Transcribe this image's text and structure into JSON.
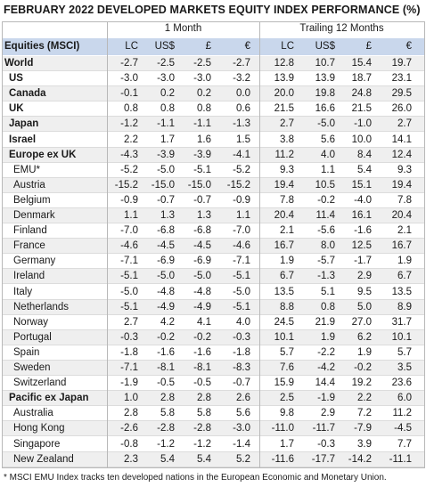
{
  "title": "FEBRUARY 2022 DEVELOPED MARKETS EQUITY INDEX PERFORMANCE (%)",
  "groups": [
    "1 Month",
    "Trailing 12 Months"
  ],
  "header": {
    "label": "Equities (MSCI)",
    "columns": [
      "LC",
      "US$",
      "£",
      "€",
      "LC",
      "US$",
      "£",
      "€"
    ]
  },
  "rows": [
    {
      "label": "World",
      "bold": true,
      "cells": [
        "-2.7",
        "-2.5",
        "-2.5",
        "-2.7",
        "12.8",
        "10.7",
        "15.4",
        "19.7"
      ]
    },
    {
      "label": "US",
      "bold": true,
      "cells": [
        "-3.0",
        "-3.0",
        "-3.0",
        "-3.2",
        "13.9",
        "13.9",
        "18.7",
        "23.1"
      ]
    },
    {
      "label": "Canada",
      "bold": true,
      "cells": [
        "-0.1",
        "0.2",
        "0.2",
        "0.0",
        "20.0",
        "19.8",
        "24.8",
        "29.5"
      ]
    },
    {
      "label": "UK",
      "bold": true,
      "cells": [
        "0.8",
        "0.8",
        "0.8",
        "0.6",
        "21.5",
        "16.6",
        "21.5",
        "26.0"
      ]
    },
    {
      "label": "Japan",
      "bold": true,
      "cells": [
        "-1.2",
        "-1.1",
        "-1.1",
        "-1.3",
        "2.7",
        "-5.0",
        "-1.0",
        "2.7"
      ]
    },
    {
      "label": "Israel",
      "bold": true,
      "cells": [
        "2.2",
        "1.7",
        "1.6",
        "1.5",
        "3.8",
        "5.6",
        "10.0",
        "14.1"
      ]
    },
    {
      "label": "Europe ex UK",
      "bold": true,
      "cells": [
        "-4.3",
        "-3.9",
        "-3.9",
        "-4.1",
        "11.2",
        "4.0",
        "8.4",
        "12.4"
      ]
    },
    {
      "label": "EMU*",
      "bold": false,
      "cells": [
        "-5.2",
        "-5.0",
        "-5.1",
        "-5.2",
        "9.3",
        "1.1",
        "5.4",
        "9.3"
      ]
    },
    {
      "label": "Austria",
      "bold": false,
      "cells": [
        "-15.2",
        "-15.0",
        "-15.0",
        "-15.2",
        "19.4",
        "10.5",
        "15.1",
        "19.4"
      ]
    },
    {
      "label": "Belgium",
      "bold": false,
      "cells": [
        "-0.9",
        "-0.7",
        "-0.7",
        "-0.9",
        "7.8",
        "-0.2",
        "-4.0",
        "7.8"
      ]
    },
    {
      "label": "Denmark",
      "bold": false,
      "cells": [
        "1.1",
        "1.3",
        "1.3",
        "1.1",
        "20.4",
        "11.4",
        "16.1",
        "20.4"
      ]
    },
    {
      "label": "Finland",
      "bold": false,
      "cells": [
        "-7.0",
        "-6.8",
        "-6.8",
        "-7.0",
        "2.1",
        "-5.6",
        "-1.6",
        "2.1"
      ]
    },
    {
      "label": "France",
      "bold": false,
      "cells": [
        "-4.6",
        "-4.5",
        "-4.5",
        "-4.6",
        "16.7",
        "8.0",
        "12.5",
        "16.7"
      ]
    },
    {
      "label": "Germany",
      "bold": false,
      "cells": [
        "-7.1",
        "-6.9",
        "-6.9",
        "-7.1",
        "1.9",
        "-5.7",
        "-1.7",
        "1.9"
      ]
    },
    {
      "label": "Ireland",
      "bold": false,
      "cells": [
        "-5.1",
        "-5.0",
        "-5.0",
        "-5.1",
        "6.7",
        "-1.3",
        "2.9",
        "6.7"
      ]
    },
    {
      "label": "Italy",
      "bold": false,
      "cells": [
        "-5.0",
        "-4.8",
        "-4.8",
        "-5.0",
        "13.5",
        "5.1",
        "9.5",
        "13.5"
      ]
    },
    {
      "label": "Netherlands",
      "bold": false,
      "cells": [
        "-5.1",
        "-4.9",
        "-4.9",
        "-5.1",
        "8.8",
        "0.8",
        "5.0",
        "8.9"
      ]
    },
    {
      "label": "Norway",
      "bold": false,
      "cells": [
        "2.7",
        "4.2",
        "4.1",
        "4.0",
        "24.5",
        "21.9",
        "27.0",
        "31.7"
      ]
    },
    {
      "label": "Portugal",
      "bold": false,
      "cells": [
        "-0.3",
        "-0.2",
        "-0.2",
        "-0.3",
        "10.1",
        "1.9",
        "6.2",
        "10.1"
      ]
    },
    {
      "label": "Spain",
      "bold": false,
      "cells": [
        "-1.8",
        "-1.6",
        "-1.6",
        "-1.8",
        "5.7",
        "-2.2",
        "1.9",
        "5.7"
      ]
    },
    {
      "label": "Sweden",
      "bold": false,
      "cells": [
        "-7.1",
        "-8.1",
        "-8.1",
        "-8.3",
        "7.6",
        "-4.2",
        "-0.2",
        "3.5"
      ]
    },
    {
      "label": "Switzerland",
      "bold": false,
      "cells": [
        "-1.9",
        "-0.5",
        "-0.5",
        "-0.7",
        "15.9",
        "14.4",
        "19.2",
        "23.6"
      ]
    },
    {
      "label": "Pacific ex Japan",
      "bold": true,
      "cells": [
        "1.0",
        "2.8",
        "2.8",
        "2.6",
        "2.5",
        "-1.9",
        "2.2",
        "6.0"
      ]
    },
    {
      "label": "Australia",
      "bold": false,
      "cells": [
        "2.8",
        "5.8",
        "5.8",
        "5.6",
        "9.8",
        "2.9",
        "7.2",
        "11.2"
      ]
    },
    {
      "label": "Hong Kong",
      "bold": false,
      "cells": [
        "-2.6",
        "-2.8",
        "-2.8",
        "-3.0",
        "-11.0",
        "-11.7",
        "-7.9",
        "-4.5"
      ]
    },
    {
      "label": "Singapore",
      "bold": false,
      "cells": [
        "-0.8",
        "-1.2",
        "-1.2",
        "-1.4",
        "1.7",
        "-0.3",
        "3.9",
        "7.7"
      ]
    },
    {
      "label": "New Zealand",
      "bold": false,
      "cells": [
        "2.3",
        "5.4",
        "5.4",
        "5.2",
        "-11.6",
        "-17.7",
        "-14.2",
        "-11.1"
      ]
    }
  ],
  "footnote": "* MSCI EMU Index tracks ten developed nations in the European Economic and Monetary Union."
}
